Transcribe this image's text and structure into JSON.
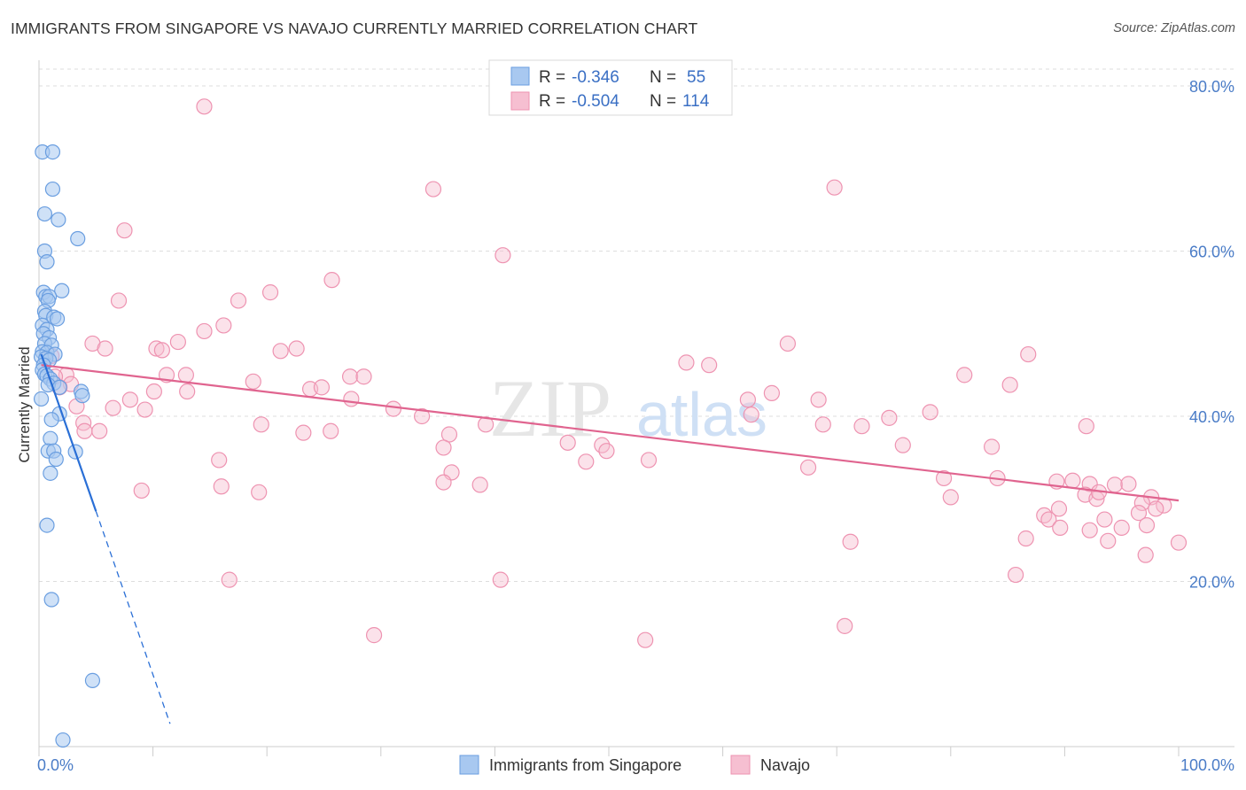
{
  "header": {
    "title": "IMMIGRANTS FROM SINGAPORE VS NAVAJO CURRENTLY MARRIED CORRELATION CHART",
    "source": "Source: ZipAtlas.com"
  },
  "watermark": {
    "zip": "ZIP",
    "atlas": "atlas"
  },
  "colors": {
    "blue_fill": "#a8c8f0",
    "blue_stroke": "#6a9ee0",
    "blue_line": "#2a6fd6",
    "pink_fill": "#f6bfd1",
    "pink_stroke": "#ee93b1",
    "pink_line": "#e0648f",
    "grid": "#dddddd",
    "axis_text": "#4a7cc7"
  },
  "chart_data": {
    "type": "scatter",
    "title": "IMMIGRANTS FROM SINGAPORE VS NAVAJO CURRENTLY MARRIED CORRELATION CHART",
    "xlabel": "",
    "ylabel": "Currently Married",
    "xlim": [
      0,
      100
    ],
    "ylim": [
      0,
      80
    ],
    "x_tick_labels": [
      "0.0%",
      "100.0%"
    ],
    "y_ticks": [
      20,
      40,
      60,
      80
    ],
    "y_tick_labels": [
      "20.0%",
      "40.0%",
      "60.0%",
      "80.0%"
    ],
    "grid": true,
    "legend_top": {
      "r_label": "R =",
      "n_label": "N =",
      "rows": [
        {
          "series": "Immigrants from Singapore",
          "r": "-0.346",
          "n": "55"
        },
        {
          "series": "Navajo",
          "r": "-0.504",
          "n": "114"
        }
      ]
    },
    "series": [
      {
        "name": "Immigrants from Singapore",
        "color": "#6a9ee0",
        "trend": {
          "x0": 0.2,
          "y0": 47.5,
          "x1": 5.0,
          "y1": 28.5,
          "dash_to_x": 11.5
        },
        "points": [
          [
            0.3,
            72
          ],
          [
            1.2,
            72
          ],
          [
            1.2,
            67.5
          ],
          [
            0.5,
            64.5
          ],
          [
            1.7,
            63.8
          ],
          [
            3.4,
            61.5
          ],
          [
            0.5,
            60
          ],
          [
            0.7,
            58.7
          ],
          [
            2.0,
            55.2
          ],
          [
            0.4,
            55
          ],
          [
            0.6,
            54.5
          ],
          [
            0.9,
            54.5
          ],
          [
            0.8,
            54
          ],
          [
            0.5,
            52.7
          ],
          [
            0.6,
            52.2
          ],
          [
            1.3,
            52
          ],
          [
            1.6,
            51.8
          ],
          [
            0.3,
            51
          ],
          [
            0.7,
            50.5
          ],
          [
            0.4,
            50
          ],
          [
            0.9,
            49.5
          ],
          [
            0.5,
            48.8
          ],
          [
            1.1,
            48.6
          ],
          [
            0.3,
            47.8
          ],
          [
            0.7,
            47.7
          ],
          [
            1.4,
            47.5
          ],
          [
            0.2,
            47.2
          ],
          [
            0.6,
            47
          ],
          [
            0.9,
            46.8
          ],
          [
            0.4,
            46.2
          ],
          [
            0.3,
            45.6
          ],
          [
            0.5,
            45.1
          ],
          [
            0.7,
            44.9
          ],
          [
            1.0,
            44.5
          ],
          [
            1.3,
            44.0
          ],
          [
            0.8,
            43.8
          ],
          [
            1.8,
            43.5
          ],
          [
            3.7,
            43
          ],
          [
            3.8,
            42.5
          ],
          [
            0.2,
            42.1
          ],
          [
            1.8,
            40.3
          ],
          [
            1.1,
            39.6
          ],
          [
            1.0,
            37.3
          ],
          [
            0.8,
            35.8
          ],
          [
            1.3,
            35.8
          ],
          [
            3.2,
            35.7
          ],
          [
            1.5,
            34.8
          ],
          [
            1.0,
            33.1
          ],
          [
            0.7,
            26.8
          ],
          [
            1.1,
            17.8
          ],
          [
            4.7,
            8
          ],
          [
            2.1,
            0.8
          ]
        ]
      },
      {
        "name": "Navajo",
        "color": "#ee93b1",
        "trend": {
          "x0": 0.2,
          "y0": 46.2,
          "x1": 100,
          "y1": 29.8
        },
        "points": [
          [
            14.5,
            77.5
          ],
          [
            34.6,
            67.5
          ],
          [
            69.8,
            67.7
          ],
          [
            7.5,
            62.5
          ],
          [
            40.7,
            59.5
          ],
          [
            25.7,
            56.5
          ],
          [
            20.3,
            55
          ],
          [
            7.0,
            54
          ],
          [
            17.5,
            54
          ],
          [
            16.2,
            51
          ],
          [
            14.5,
            50.3
          ],
          [
            12.2,
            49
          ],
          [
            4.7,
            48.8
          ],
          [
            5.8,
            48.2
          ],
          [
            10.3,
            48.2
          ],
          [
            10.8,
            48
          ],
          [
            21.2,
            47.9
          ],
          [
            22.6,
            48.2
          ],
          [
            65.7,
            48.8
          ],
          [
            86.8,
            47.5
          ],
          [
            1.1,
            47.3
          ],
          [
            56.8,
            46.5
          ],
          [
            58.8,
            46.2
          ],
          [
            11.2,
            45
          ],
          [
            12.9,
            45
          ],
          [
            2.4,
            45
          ],
          [
            1.4,
            44.8
          ],
          [
            27.3,
            44.8
          ],
          [
            28.5,
            44.8
          ],
          [
            81.2,
            45
          ],
          [
            18.8,
            44.2
          ],
          [
            2.8,
            43.9
          ],
          [
            1.8,
            43.5
          ],
          [
            10.1,
            43
          ],
          [
            23.8,
            43.3
          ],
          [
            24.8,
            43.5
          ],
          [
            85.2,
            43.8
          ],
          [
            13.0,
            43
          ],
          [
            64.3,
            42.8
          ],
          [
            62.2,
            42
          ],
          [
            8.0,
            42
          ],
          [
            27.4,
            42.1
          ],
          [
            68.4,
            42
          ],
          [
            3.3,
            41.2
          ],
          [
            6.5,
            41
          ],
          [
            9.3,
            40.8
          ],
          [
            31.1,
            40.9
          ],
          [
            62.5,
            40.2
          ],
          [
            74.6,
            39.8
          ],
          [
            78.2,
            40.5
          ],
          [
            33.6,
            40
          ],
          [
            3.9,
            39.2
          ],
          [
            19.5,
            39
          ],
          [
            39.2,
            39
          ],
          [
            68.8,
            39
          ],
          [
            72.2,
            38.8
          ],
          [
            91.9,
            38.8
          ],
          [
            5.3,
            38.2
          ],
          [
            4.0,
            38.2
          ],
          [
            25.6,
            38.2
          ],
          [
            23.2,
            38
          ],
          [
            36.0,
            37.8
          ],
          [
            35.5,
            36.2
          ],
          [
            46.4,
            36.8
          ],
          [
            49.4,
            36.5
          ],
          [
            49.8,
            35.8
          ],
          [
            75.8,
            36.5
          ],
          [
            83.6,
            36.3
          ],
          [
            15.8,
            34.7
          ],
          [
            48.0,
            34.5
          ],
          [
            53.5,
            34.7
          ],
          [
            67.5,
            33.8
          ],
          [
            36.2,
            33.2
          ],
          [
            79.4,
            32.5
          ],
          [
            84.1,
            32.5
          ],
          [
            89.3,
            32.1
          ],
          [
            90.7,
            32.2
          ],
          [
            35.5,
            32
          ],
          [
            38.7,
            31.7
          ],
          [
            16.0,
            31.5
          ],
          [
            9.0,
            31
          ],
          [
            19.3,
            30.8
          ],
          [
            92.2,
            31.8
          ],
          [
            94.4,
            31.7
          ],
          [
            95.6,
            31.8
          ],
          [
            80.0,
            30.2
          ],
          [
            91.8,
            30.5
          ],
          [
            92.8,
            30
          ],
          [
            93.0,
            30.8
          ],
          [
            97.6,
            30.2
          ],
          [
            96.8,
            29.5
          ],
          [
            98.7,
            29.2
          ],
          [
            98.0,
            28.8
          ],
          [
            89.5,
            28.8
          ],
          [
            96.5,
            28.3
          ],
          [
            88.2,
            28
          ],
          [
            88.6,
            27.5
          ],
          [
            93.5,
            27.5
          ],
          [
            97.2,
            26.8
          ],
          [
            89.6,
            26.5
          ],
          [
            95.0,
            26.5
          ],
          [
            92.2,
            26.2
          ],
          [
            86.6,
            25.2
          ],
          [
            71.2,
            24.8
          ],
          [
            93.8,
            24.9
          ],
          [
            100.0,
            24.7
          ],
          [
            97.1,
            23.2
          ],
          [
            85.7,
            20.8
          ],
          [
            16.7,
            20.2
          ],
          [
            40.5,
            20.2
          ],
          [
            70.7,
            14.6
          ],
          [
            29.4,
            13.5
          ],
          [
            53.2,
            12.9
          ]
        ]
      }
    ]
  },
  "bottom_legend": [
    {
      "label": "Immigrants from Singapore"
    },
    {
      "label": "Navajo"
    }
  ]
}
